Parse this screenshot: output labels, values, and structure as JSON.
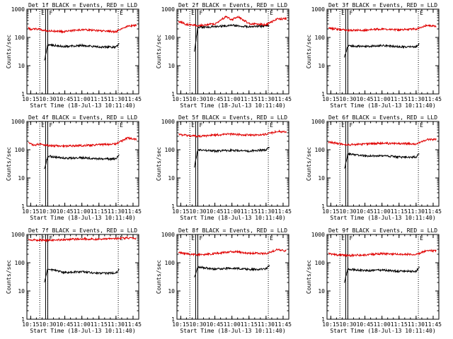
{
  "colors": {
    "events": "#000000",
    "lld": "#e00000",
    "axes": "#000000",
    "background": "#ffffff"
  },
  "common": {
    "xlabel": "Start Time (18-Jul-13 10:11:40)",
    "ylabel": "Counts/sec",
    "x_tick_labels": [
      "10:15",
      "10:30",
      "10:45",
      "11:00",
      "11:15",
      "11:30",
      "11:45"
    ],
    "y_tick_labels": [
      "1",
      "10",
      "100",
      "1000"
    ],
    "marker_labels": [
      "E",
      "F",
      "E"
    ],
    "yscale": "log"
  },
  "chart_data": [
    {
      "type": "line",
      "title": "Det 1f BLACK = Events, RED = LLD",
      "xlim": [
        "10:11:40",
        "11:50"
      ],
      "ylim": [
        1,
        1000
      ],
      "markers": [
        "10:23",
        "10:30",
        "11:32"
      ],
      "series": [
        {
          "name": "Events",
          "x": [
            "10:27",
            "10:30",
            "10:45",
            "11:00",
            "11:15",
            "11:30",
            "11:33"
          ],
          "y": [
            15,
            55,
            48,
            52,
            46,
            45,
            60
          ]
        },
        {
          "name": "LLD",
          "x": [
            "10:13",
            "10:15",
            "10:20",
            "10:30",
            "10:45",
            "11:00",
            "11:15",
            "11:30",
            "11:40",
            "11:48"
          ],
          "y": [
            230,
            190,
            200,
            170,
            160,
            190,
            175,
            160,
            250,
            270
          ]
        }
      ]
    },
    {
      "type": "line",
      "title": "Det 2f BLACK = Events, RED = LLD",
      "xlim": [
        "10:11:40",
        "11:50"
      ],
      "ylim": [
        1,
        1000
      ],
      "markers": [
        "10:23",
        "10:30",
        "11:32"
      ],
      "series": [
        {
          "name": "Events",
          "x": [
            "10:27",
            "10:30",
            "10:45",
            "11:00",
            "11:15",
            "11:30",
            "11:33"
          ],
          "y": [
            30,
            230,
            240,
            270,
            240,
            250,
            260
          ]
        },
        {
          "name": "LLD",
          "x": [
            "10:13",
            "10:20",
            "10:30",
            "10:45",
            "10:55",
            "11:00",
            "11:05",
            "11:15",
            "11:30",
            "11:40",
            "11:48"
          ],
          "y": [
            380,
            290,
            260,
            300,
            550,
            420,
            550,
            310,
            280,
            450,
            460
          ]
        }
      ]
    },
    {
      "type": "line",
      "title": "Det 3f BLACK = Events, RED = LLD",
      "xlim": [
        "10:11:40",
        "11:50"
      ],
      "ylim": [
        1,
        1000
      ],
      "markers": [
        "10:23",
        "10:30",
        "11:32"
      ],
      "series": [
        {
          "name": "Events",
          "x": [
            "10:27",
            "10:30",
            "10:45",
            "11:00",
            "11:15",
            "11:30",
            "11:33"
          ],
          "y": [
            20,
            50,
            48,
            52,
            47,
            46,
            60
          ]
        },
        {
          "name": "LLD",
          "x": [
            "10:13",
            "10:20",
            "10:30",
            "10:45",
            "11:00",
            "11:15",
            "11:30",
            "11:40",
            "11:48"
          ],
          "y": [
            210,
            200,
            175,
            180,
            200,
            185,
            200,
            270,
            250
          ]
        }
      ]
    },
    {
      "type": "line",
      "title": "Det 4f BLACK = Events, RED = LLD",
      "xlim": [
        "10:11:40",
        "11:50"
      ],
      "ylim": [
        1,
        1000
      ],
      "markers": [
        "10:23",
        "10:30",
        "11:32"
      ],
      "series": [
        {
          "name": "Events",
          "x": [
            "10:27",
            "10:30",
            "10:45",
            "11:00",
            "11:15",
            "11:30",
            "11:33"
          ],
          "y": [
            20,
            60,
            50,
            52,
            48,
            47,
            65
          ]
        },
        {
          "name": "LLD",
          "x": [
            "10:13",
            "10:18",
            "10:22",
            "10:30",
            "10:45",
            "11:00",
            "11:15",
            "11:30",
            "11:40",
            "11:48"
          ],
          "y": [
            180,
            140,
            160,
            140,
            135,
            140,
            150,
            160,
            260,
            230
          ]
        }
      ]
    },
    {
      "type": "line",
      "title": "Det 5f BLACK = Events, RED = LLD",
      "xlim": [
        "10:11:40",
        "11:50"
      ],
      "ylim": [
        1,
        1000
      ],
      "markers": [
        "10:23",
        "10:30",
        "11:32"
      ],
      "series": [
        {
          "name": "Events",
          "x": [
            "10:27",
            "10:30",
            "10:45",
            "11:00",
            "11:15",
            "11:30",
            "11:33"
          ],
          "y": [
            25,
            100,
            90,
            95,
            90,
            100,
            125
          ]
        },
        {
          "name": "LLD",
          "x": [
            "10:13",
            "10:20",
            "10:30",
            "10:45",
            "11:00",
            "11:15",
            "11:30",
            "11:40",
            "11:48"
          ],
          "y": [
            350,
            320,
            300,
            330,
            360,
            330,
            350,
            450,
            420
          ]
        }
      ]
    },
    {
      "type": "line",
      "title": "Det 6f BLACK = Events, RED = LLD",
      "xlim": [
        "10:11:40",
        "11:50"
      ],
      "ylim": [
        1,
        1000
      ],
      "markers": [
        "10:23",
        "10:30",
        "11:32"
      ],
      "series": [
        {
          "name": "Events",
          "x": [
            "10:27",
            "10:30",
            "10:45",
            "11:00",
            "11:15",
            "11:30",
            "11:33"
          ],
          "y": [
            20,
            70,
            60,
            62,
            55,
            55,
            75
          ]
        },
        {
          "name": "LLD",
          "x": [
            "10:13",
            "10:20",
            "10:30",
            "10:45",
            "11:00",
            "11:15",
            "11:30",
            "11:40",
            "11:48"
          ],
          "y": [
            190,
            170,
            150,
            160,
            170,
            165,
            160,
            230,
            230
          ]
        }
      ]
    },
    {
      "type": "line",
      "title": "Det 7f BLACK = Events, RED = LLD",
      "xlim": [
        "10:11:40",
        "11:50"
      ],
      "ylim": [
        1,
        1000
      ],
      "markers": [
        "10:23",
        "10:30",
        "11:32"
      ],
      "series": [
        {
          "name": "Events",
          "x": [
            "10:27",
            "10:30",
            "10:45",
            "11:00",
            "11:15",
            "11:30",
            "11:33"
          ],
          "y": [
            20,
            60,
            45,
            48,
            42,
            43,
            60
          ]
        },
        {
          "name": "LLD",
          "x": [
            "10:13",
            "10:20",
            "10:30",
            "10:45",
            "11:00",
            "11:15",
            "11:30",
            "11:40",
            "11:48"
          ],
          "y": [
            650,
            640,
            620,
            660,
            700,
            680,
            700,
            760,
            720
          ]
        }
      ]
    },
    {
      "type": "line",
      "title": "Det 8f BLACK = Events, RED = LLD",
      "xlim": [
        "10:11:40",
        "11:50"
      ],
      "ylim": [
        1,
        1000
      ],
      "markers": [
        "10:23",
        "10:30",
        "11:32"
      ],
      "series": [
        {
          "name": "Events",
          "x": [
            "10:27",
            "10:30",
            "10:45",
            "11:00",
            "11:15",
            "11:30",
            "11:33"
          ],
          "y": [
            30,
            70,
            60,
            65,
            58,
            60,
            80
          ]
        },
        {
          "name": "LLD",
          "x": [
            "10:13",
            "10:20",
            "10:30",
            "10:45",
            "11:00",
            "11:15",
            "11:30",
            "11:40",
            "11:48"
          ],
          "y": [
            230,
            210,
            190,
            210,
            250,
            220,
            210,
            290,
            260
          ]
        }
      ]
    },
    {
      "type": "line",
      "title": "Det 9f BLACK = Events, RED = LLD",
      "xlim": [
        "10:11:40",
        "11:50"
      ],
      "ylim": [
        1,
        1000
      ],
      "markers": [
        "10:23",
        "10:30",
        "11:32"
      ],
      "series": [
        {
          "name": "Events",
          "x": [
            "10:27",
            "10:30",
            "10:45",
            "11:00",
            "11:15",
            "11:30",
            "11:33"
          ],
          "y": [
            20,
            60,
            52,
            55,
            50,
            50,
            70
          ]
        },
        {
          "name": "LLD",
          "x": [
            "10:13",
            "10:20",
            "10:30",
            "10:45",
            "11:00",
            "11:15",
            "11:30",
            "11:40",
            "11:48"
          ],
          "y": [
            210,
            190,
            180,
            190,
            210,
            200,
            200,
            270,
            260
          ]
        }
      ]
    }
  ]
}
